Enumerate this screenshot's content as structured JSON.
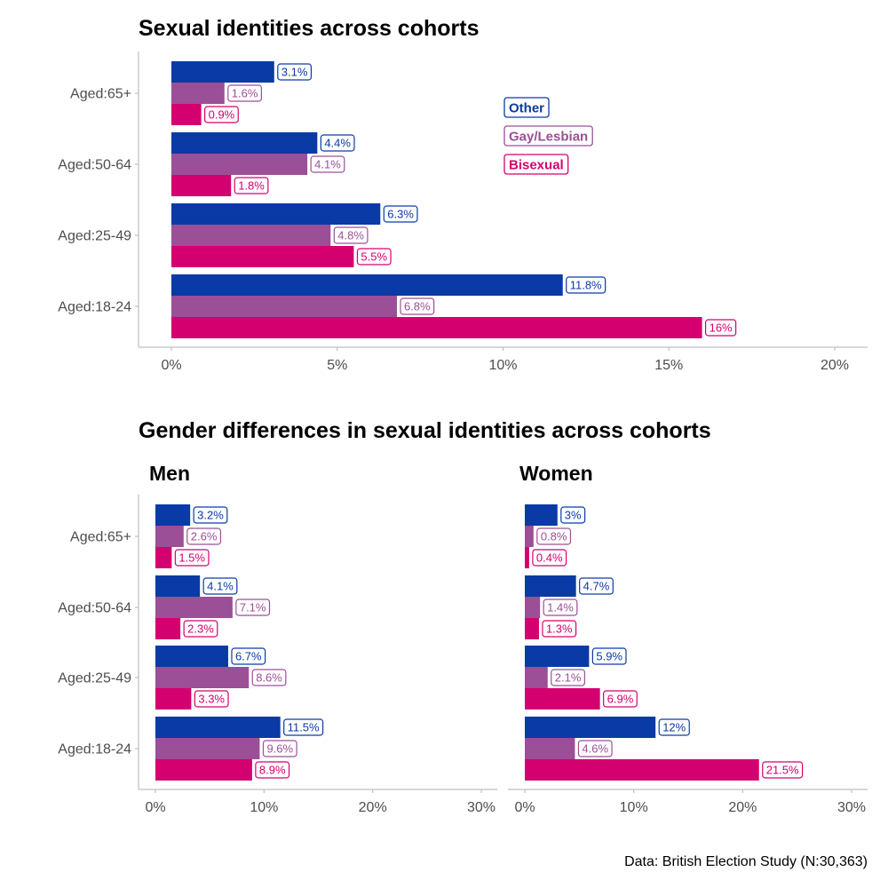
{
  "colors": {
    "other": "#0a3aa6",
    "gay": "#9b4f96",
    "bi": "#d4006f"
  },
  "legend": [
    {
      "key": "other",
      "label": "Other"
    },
    {
      "key": "gay",
      "label": "Gay/Lesbian"
    },
    {
      "key": "bi",
      "label": "Bisexual"
    }
  ],
  "caption": "Data: British Election Study (N:30,363)",
  "section2_title": "Gender differences in sexual identities across cohorts",
  "chart_data": [
    {
      "type": "bar",
      "orientation": "horizontal",
      "title": "Sexual identities across cohorts",
      "categories": [
        "Aged:65+",
        "Aged:50-64",
        "Aged:25-49",
        "Aged:18-24"
      ],
      "series": [
        {
          "key": "other",
          "name": "Other",
          "values": [
            3.1,
            4.4,
            6.3,
            11.8
          ],
          "labels": [
            "3.1%",
            "4.4%",
            "6.3%",
            "11.8%"
          ]
        },
        {
          "key": "gay",
          "name": "Gay/Lesbian",
          "values": [
            1.6,
            4.1,
            4.8,
            6.8
          ],
          "labels": [
            "1.6%",
            "4.1%",
            "4.8%",
            "6.8%"
          ]
        },
        {
          "key": "bi",
          "name": "Bisexual",
          "values": [
            0.9,
            1.8,
            5.5,
            16
          ],
          "labels": [
            "0.9%",
            "1.8%",
            "5.5%",
            "16%"
          ]
        }
      ],
      "xlim": [
        0,
        20
      ],
      "ticks": [
        0,
        5,
        10,
        15,
        20
      ],
      "tick_labels": [
        "0%",
        "5%",
        "10%",
        "15%",
        "20%"
      ],
      "legend_position": "inside-right"
    },
    {
      "type": "bar",
      "orientation": "horizontal",
      "title": "Men",
      "categories": [
        "Aged:65+",
        "Aged:50-64",
        "Aged:25-49",
        "Aged:18-24"
      ],
      "series": [
        {
          "key": "other",
          "name": "Other",
          "values": [
            3.2,
            4.1,
            6.7,
            11.5
          ],
          "labels": [
            "3.2%",
            "4.1%",
            "6.7%",
            "11.5%"
          ]
        },
        {
          "key": "gay",
          "name": "Gay/Lesbian",
          "values": [
            2.6,
            7.1,
            8.6,
            9.6
          ],
          "labels": [
            "2.6%",
            "7.1%",
            "8.6%",
            "9.6%"
          ]
        },
        {
          "key": "bi",
          "name": "Bisexual",
          "values": [
            1.5,
            2.3,
            3.3,
            8.9
          ],
          "labels": [
            "1.5%",
            "2.3%",
            "3.3%",
            "8.9%"
          ]
        }
      ],
      "xlim": [
        0,
        30
      ],
      "ticks": [
        0,
        10,
        20,
        30
      ],
      "tick_labels": [
        "0%",
        "10%",
        "20%",
        "30%"
      ]
    },
    {
      "type": "bar",
      "orientation": "horizontal",
      "title": "Women",
      "categories": [
        "Aged:65+",
        "Aged:50-64",
        "Aged:25-49",
        "Aged:18-24"
      ],
      "series": [
        {
          "key": "other",
          "name": "Other",
          "values": [
            3,
            4.7,
            5.9,
            12
          ],
          "labels": [
            "3%",
            "4.7%",
            "5.9%",
            "12%"
          ]
        },
        {
          "key": "gay",
          "name": "Gay/Lesbian",
          "values": [
            0.8,
            1.4,
            2.1,
            4.6
          ],
          "labels": [
            "0.8%",
            "1.4%",
            "2.1%",
            "4.6%"
          ]
        },
        {
          "key": "bi",
          "name": "Bisexual",
          "values": [
            0.4,
            1.3,
            6.9,
            21.5
          ],
          "labels": [
            "0.4%",
            "1.3%",
            "6.9%",
            "21.5%"
          ]
        }
      ],
      "xlim": [
        0,
        30
      ],
      "ticks": [
        0,
        10,
        20,
        30
      ],
      "tick_labels": [
        "0%",
        "10%",
        "20%",
        "30%"
      ]
    }
  ]
}
